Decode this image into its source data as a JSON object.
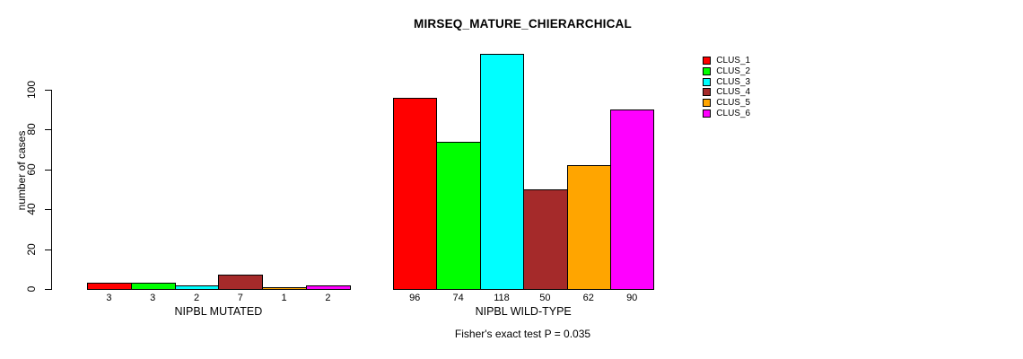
{
  "chart_data": {
    "type": "bar",
    "title": "MIRSEQ_MATURE_CHIERARCHICAL",
    "ylabel": "number of cases",
    "xlabel": "",
    "annotation": "Fisher's exact test P = 0.035",
    "categories": [
      "NIPBL MUTATED",
      "NIPBL WILD-TYPE"
    ],
    "series": [
      {
        "name": "CLUS_1",
        "color": "#FF0000",
        "values": [
          3,
          96
        ]
      },
      {
        "name": "CLUS_2",
        "color": "#00FF00",
        "values": [
          3,
          74
        ]
      },
      {
        "name": "CLUS_3",
        "color": "#00FFFF",
        "values": [
          2,
          118
        ]
      },
      {
        "name": "CLUS_4",
        "color": "#A52A2A",
        "values": [
          7,
          50
        ]
      },
      {
        "name": "CLUS_5",
        "color": "#FFA500",
        "values": [
          1,
          62
        ]
      },
      {
        "name": "CLUS_6",
        "color": "#FF00FF",
        "values": [
          2,
          90
        ]
      }
    ],
    "yticks": [
      0,
      20,
      40,
      60,
      80,
      100
    ],
    "ylim": [
      0,
      118
    ],
    "grid": false,
    "legend_position": "top-right",
    "bar_value_labels_shown": true,
    "axis_color": "#000000",
    "bar_border_color": "#000000"
  }
}
